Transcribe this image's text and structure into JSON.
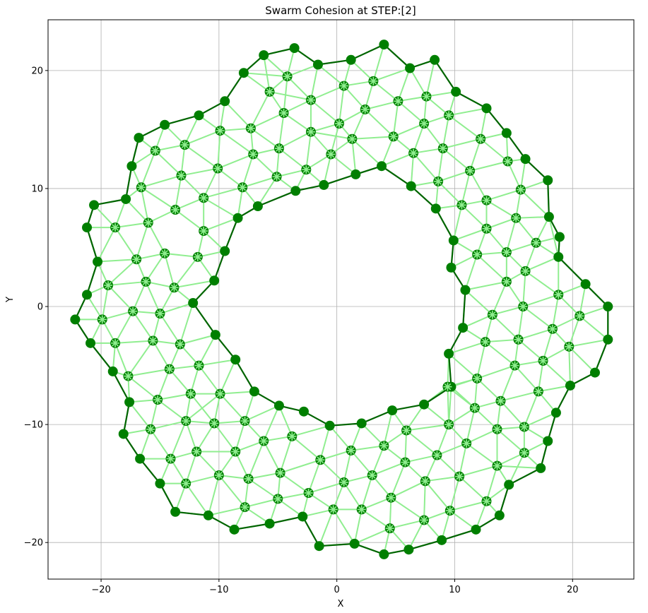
{
  "chart_data": {
    "type": "scatter",
    "title": "Swarm Cohesion at STEP:[2]",
    "xlabel": "X",
    "ylabel": "Y",
    "xlim": [
      -24.5,
      25.2
    ],
    "ylim": [
      -23.1,
      24.3
    ],
    "xticks": [
      -20,
      -10,
      0,
      10,
      20
    ],
    "yticks": [
      -20,
      -10,
      0,
      10,
      20
    ],
    "grid": true,
    "colors": {
      "boundary_agent": "#007f00",
      "boundary_edge": "#006400",
      "interior_agent": "#007f00",
      "interior_star": "#90ee90",
      "interior_edge": "#90ee90"
    },
    "boundary_outer": [
      [
        -22.2,
        -1.1
      ],
      [
        -21.2,
        1.0
      ],
      [
        -20.3,
        3.8
      ],
      [
        -21.2,
        6.7
      ],
      [
        -20.6,
        8.6
      ],
      [
        -17.9,
        9.1
      ],
      [
        -17.4,
        11.9
      ],
      [
        -16.8,
        14.3
      ],
      [
        -14.6,
        15.4
      ],
      [
        -11.7,
        16.2
      ],
      [
        -9.5,
        17.4
      ],
      [
        -7.9,
        19.8
      ],
      [
        -6.2,
        21.3
      ],
      [
        -3.6,
        21.9
      ],
      [
        -1.6,
        20.5
      ],
      [
        1.2,
        20.9
      ],
      [
        4.0,
        22.2
      ],
      [
        6.2,
        20.2
      ],
      [
        8.3,
        20.9
      ],
      [
        10.1,
        18.2
      ],
      [
        12.7,
        16.8
      ],
      [
        14.4,
        14.7
      ],
      [
        16.0,
        12.5
      ],
      [
        17.9,
        10.7
      ],
      [
        18.0,
        7.6
      ],
      [
        18.9,
        5.9
      ],
      [
        18.8,
        4.2
      ],
      [
        21.1,
        1.9
      ],
      [
        23.0,
        0.0
      ],
      [
        23.0,
        -2.8
      ],
      [
        21.9,
        -5.6
      ],
      [
        19.8,
        -6.7
      ],
      [
        18.6,
        -9.0
      ],
      [
        17.9,
        -11.4
      ],
      [
        17.3,
        -13.7
      ],
      [
        14.6,
        -15.1
      ],
      [
        13.8,
        -17.7
      ],
      [
        11.8,
        -18.9
      ],
      [
        8.9,
        -19.8
      ],
      [
        6.1,
        -20.6
      ],
      [
        4.0,
        -21.0
      ],
      [
        1.5,
        -20.1
      ],
      [
        -1.5,
        -20.3
      ],
      [
        -2.9,
        -17.8
      ],
      [
        -5.7,
        -18.4
      ],
      [
        -8.7,
        -18.9
      ],
      [
        -10.9,
        -17.7
      ],
      [
        -13.7,
        -17.4
      ],
      [
        -15.0,
        -15.0
      ],
      [
        -16.7,
        -12.9
      ],
      [
        -18.1,
        -10.8
      ],
      [
        -17.6,
        -8.1
      ],
      [
        -19.0,
        -5.5
      ],
      [
        -20.9,
        -3.1
      ]
    ],
    "boundary_inner": [
      [
        -12.2,
        0.3
      ],
      [
        -10.4,
        2.2
      ],
      [
        -9.5,
        4.7
      ],
      [
        -8.4,
        7.5
      ],
      [
        -6.7,
        8.5
      ],
      [
        -3.5,
        9.8
      ],
      [
        -1.1,
        10.3
      ],
      [
        1.6,
        11.2
      ],
      [
        3.8,
        11.9
      ],
      [
        6.3,
        10.2
      ],
      [
        8.4,
        8.3
      ],
      [
        9.9,
        5.6
      ],
      [
        9.7,
        3.3
      ],
      [
        10.9,
        1.4
      ],
      [
        10.7,
        -1.8
      ],
      [
        9.5,
        -4.0
      ],
      [
        9.7,
        -6.8
      ],
      [
        7.4,
        -8.3
      ],
      [
        4.7,
        -8.8
      ],
      [
        2.1,
        -9.9
      ],
      [
        -0.6,
        -10.1
      ],
      [
        -2.8,
        -8.9
      ],
      [
        -4.9,
        -8.4
      ],
      [
        -7.0,
        -7.2
      ],
      [
        -8.6,
        -4.5
      ],
      [
        -10.3,
        -2.4
      ]
    ],
    "interior_agents": [
      [
        -19.9,
        -1.1
      ],
      [
        -18.8,
        -3.1
      ],
      [
        -17.7,
        -5.9
      ],
      [
        -15.6,
        -2.9
      ],
      [
        -13.3,
        -3.2
      ],
      [
        -15.0,
        -0.6
      ],
      [
        -17.3,
        -0.4
      ],
      [
        -19.4,
        1.8
      ],
      [
        -16.2,
        2.1
      ],
      [
        -13.8,
        1.6
      ],
      [
        -17.0,
        4.0
      ],
      [
        -14.6,
        4.5
      ],
      [
        -11.8,
        4.2
      ],
      [
        -18.8,
        6.7
      ],
      [
        -16.0,
        7.1
      ],
      [
        -13.7,
        8.2
      ],
      [
        -11.3,
        6.4
      ],
      [
        -16.6,
        10.1
      ],
      [
        -13.2,
        11.1
      ],
      [
        -11.3,
        9.2
      ],
      [
        -15.4,
        13.2
      ],
      [
        -12.9,
        13.7
      ],
      [
        -10.1,
        11.7
      ],
      [
        -9.9,
        14.9
      ],
      [
        -8.0,
        10.1
      ],
      [
        -7.3,
        15.1
      ],
      [
        -7.1,
        12.9
      ],
      [
        -5.1,
        11.0
      ],
      [
        -4.9,
        13.4
      ],
      [
        -4.5,
        16.4
      ],
      [
        -5.7,
        18.2
      ],
      [
        -4.2,
        19.5
      ],
      [
        -2.2,
        17.5
      ],
      [
        -2.2,
        14.8
      ],
      [
        -2.6,
        11.6
      ],
      [
        -0.5,
        12.9
      ],
      [
        0.2,
        15.5
      ],
      [
        0.6,
        18.7
      ],
      [
        1.3,
        14.2
      ],
      [
        2.4,
        16.7
      ],
      [
        3.1,
        19.1
      ],
      [
        4.8,
        14.4
      ],
      [
        5.2,
        17.4
      ],
      [
        6.5,
        13.0
      ],
      [
        7.4,
        15.5
      ],
      [
        7.6,
        17.8
      ],
      [
        9.5,
        16.2
      ],
      [
        9.0,
        13.4
      ],
      [
        8.6,
        10.6
      ],
      [
        10.6,
        8.6
      ],
      [
        11.3,
        11.5
      ],
      [
        12.2,
        14.2
      ],
      [
        12.7,
        9.0
      ],
      [
        12.7,
        6.6
      ],
      [
        14.5,
        12.3
      ],
      [
        15.2,
        7.5
      ],
      [
        15.6,
        9.9
      ],
      [
        11.9,
        4.4
      ],
      [
        14.4,
        4.6
      ],
      [
        16.9,
        5.4
      ],
      [
        14.4,
        2.1
      ],
      [
        16.0,
        3.0
      ],
      [
        18.8,
        1.0
      ],
      [
        15.8,
        0.0
      ],
      [
        13.2,
        -0.7
      ],
      [
        12.6,
        -3.0
      ],
      [
        15.4,
        -2.8
      ],
      [
        17.5,
        -4.6
      ],
      [
        18.3,
        -1.9
      ],
      [
        20.6,
        -0.8
      ],
      [
        19.7,
        -3.4
      ],
      [
        15.1,
        -5.0
      ],
      [
        11.9,
        -6.1
      ],
      [
        9.4,
        -6.8
      ],
      [
        11.7,
        -8.6
      ],
      [
        13.9,
        -8.0
      ],
      [
        17.1,
        -7.2
      ],
      [
        15.9,
        -10.2
      ],
      [
        13.6,
        -10.4
      ],
      [
        11.0,
        -11.6
      ],
      [
        9.5,
        -10.0
      ],
      [
        8.5,
        -12.6
      ],
      [
        10.4,
        -14.4
      ],
      [
        13.6,
        -13.5
      ],
      [
        15.9,
        -12.4
      ],
      [
        12.7,
        -16.5
      ],
      [
        9.6,
        -17.3
      ],
      [
        7.4,
        -18.1
      ],
      [
        7.5,
        -14.8
      ],
      [
        5.8,
        -13.2
      ],
      [
        5.9,
        -10.5
      ],
      [
        4.0,
        -11.8
      ],
      [
        3.0,
        -14.3
      ],
      [
        4.6,
        -16.2
      ],
      [
        2.1,
        -17.2
      ],
      [
        4.5,
        -18.8
      ],
      [
        -0.3,
        -17.2
      ],
      [
        0.6,
        -14.9
      ],
      [
        1.2,
        -12.2
      ],
      [
        -1.4,
        -13.0
      ],
      [
        -2.4,
        -15.8
      ],
      [
        -5.0,
        -16.3
      ],
      [
        -4.8,
        -14.1
      ],
      [
        -3.8,
        -11.0
      ],
      [
        -6.2,
        -11.4
      ],
      [
        -7.5,
        -14.6
      ],
      [
        -7.8,
        -17.0
      ],
      [
        -8.6,
        -12.3
      ],
      [
        -10.0,
        -14.3
      ],
      [
        -11.9,
        -12.3
      ],
      [
        -12.8,
        -15.0
      ],
      [
        -14.1,
        -12.9
      ],
      [
        -15.8,
        -10.4
      ],
      [
        -12.8,
        -9.7
      ],
      [
        -10.4,
        -9.9
      ],
      [
        -7.8,
        -9.7
      ],
      [
        -9.9,
        -7.4
      ],
      [
        -12.4,
        -7.4
      ],
      [
        -15.2,
        -7.9
      ],
      [
        -11.7,
        -5.0
      ],
      [
        -14.2,
        -5.3
      ]
    ]
  }
}
